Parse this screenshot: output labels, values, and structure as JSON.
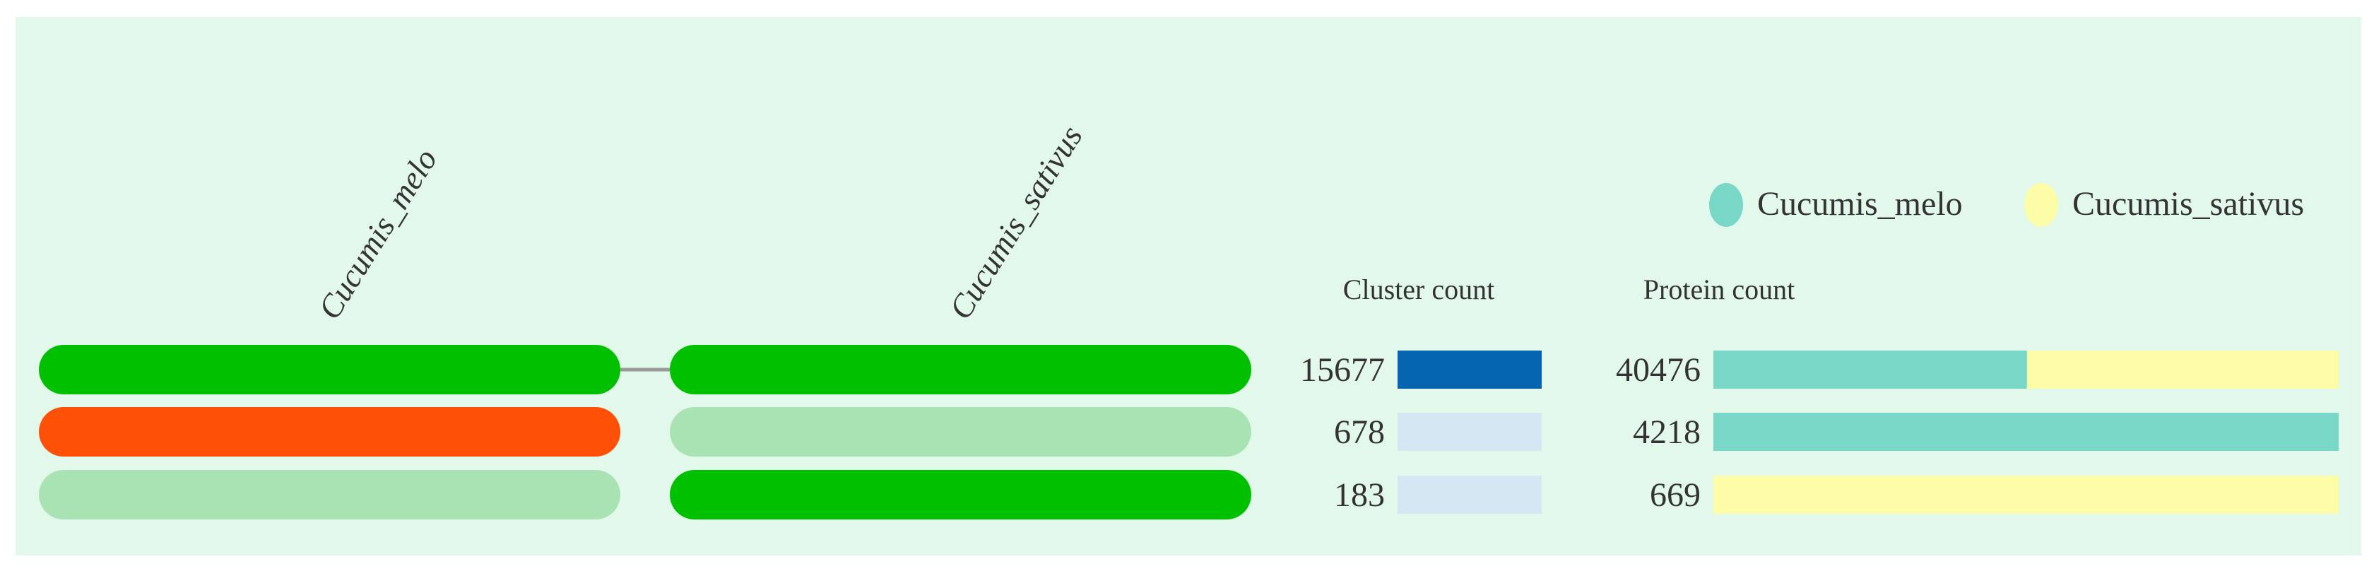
{
  "chart_data": {
    "type": "table",
    "species": [
      "Cucumis_melo",
      "Cucumis_sativus"
    ],
    "legend": [
      {
        "label": "Cucumis_melo",
        "color": "#79d7c8"
      },
      {
        "label": "Cucumis_sativus",
        "color": "#fdfda8"
      }
    ],
    "headers": {
      "cluster": "Cluster count",
      "protein": "Protein count"
    },
    "rows": [
      {
        "presence": [
          "present",
          "present"
        ],
        "cluster_count": 15677,
        "protein_count": 40476,
        "protein_split": [
          20300,
          20176
        ]
      },
      {
        "presence": [
          "unique",
          "absent"
        ],
        "cluster_count": 678,
        "protein_count": 4218,
        "protein_split": [
          4218,
          0
        ]
      },
      {
        "presence": [
          "absent",
          "present"
        ],
        "cluster_count": 183,
        "protein_count": 669,
        "protein_split": [
          0,
          669
        ]
      }
    ],
    "colors": {
      "background": "#e2f8ea",
      "present": "#00c000",
      "unique": "#ff5007",
      "absent": "#a9e3b4",
      "connector": "#999999",
      "cluster_high": "#0665b0",
      "cluster_low": "#d6e7f4"
    }
  }
}
